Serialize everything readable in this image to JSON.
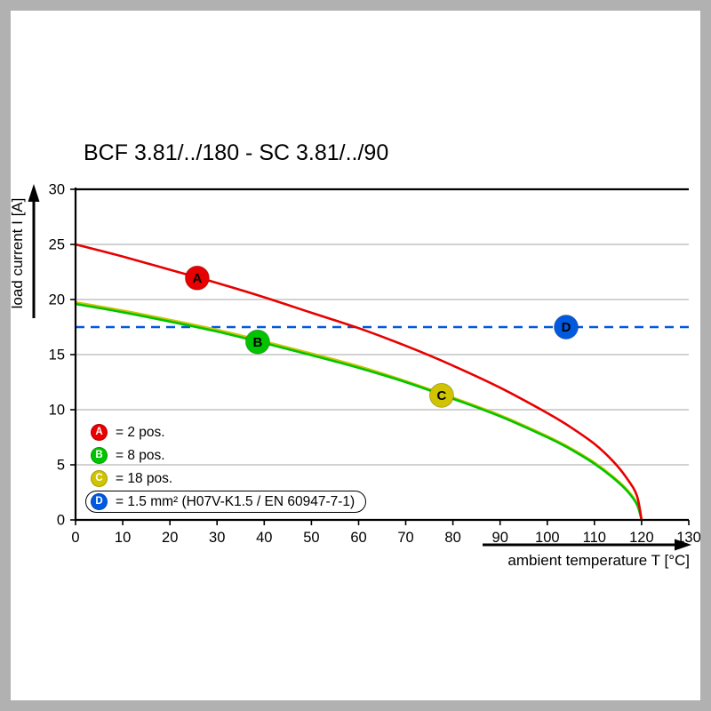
{
  "page": {
    "background": "#ffffff",
    "frame_color": "#b1b1b1"
  },
  "chart_data": {
    "type": "line",
    "title": "BCF 3.81/../180 - SC 3.81/../90",
    "xlabel": "ambient temperature T [°C]",
    "ylabel": "load current I [A]",
    "xlim": [
      0,
      130
    ],
    "ylim": [
      0,
      30
    ],
    "x_ticks": [
      0,
      10,
      20,
      30,
      40,
      50,
      60,
      70,
      80,
      90,
      100,
      110,
      120,
      130
    ],
    "y_ticks": [
      0,
      5,
      10,
      15,
      20,
      25,
      30
    ],
    "grid": "horizontal-only",
    "gridline_color": "#c4c4c4",
    "legend_position": "bottom-left-inside",
    "series": [
      {
        "id": "A",
        "name": "2 pos.",
        "color": "#e80000",
        "style": "solid",
        "marker": {
          "t": 25.8,
          "i": 21.95
        },
        "points": [
          [
            0,
            25
          ],
          [
            10,
            23.9
          ],
          [
            20,
            22.7
          ],
          [
            30,
            21.5
          ],
          [
            40,
            20.2
          ],
          [
            50,
            18.8
          ],
          [
            60,
            17.4
          ],
          [
            70,
            15.8
          ],
          [
            80,
            14
          ],
          [
            90,
            12
          ],
          [
            100,
            9.7
          ],
          [
            105,
            8.4
          ],
          [
            110,
            6.9
          ],
          [
            114,
            5.3
          ],
          [
            117,
            3.7
          ],
          [
            119,
            2.2
          ],
          [
            120,
            0
          ]
        ]
      },
      {
        "id": "B",
        "name": "8 pos.",
        "color": "#00c400",
        "style": "solid",
        "marker": {
          "t": 38.6,
          "i": 16.15
        },
        "points": [
          [
            0,
            19.6
          ],
          [
            10,
            18.85
          ],
          [
            20,
            18
          ],
          [
            30,
            17.1
          ],
          [
            40,
            16.05
          ],
          [
            50,
            14.95
          ],
          [
            60,
            13.8
          ],
          [
            70,
            12.5
          ],
          [
            80,
            11
          ],
          [
            90,
            9.4
          ],
          [
            100,
            7.5
          ],
          [
            105,
            6.4
          ],
          [
            110,
            5.1
          ],
          [
            114,
            3.8
          ],
          [
            117,
            2.6
          ],
          [
            119,
            1.4
          ],
          [
            120,
            0
          ]
        ]
      },
      {
        "id": "C",
        "name": "18 pos.",
        "color": "#d0c400",
        "style": "solid",
        "marker": {
          "t": 77.6,
          "i": 11.3
        },
        "points": [
          [
            0,
            19.75
          ],
          [
            10,
            19
          ],
          [
            20,
            18.15
          ],
          [
            30,
            17.25
          ],
          [
            40,
            16.2
          ],
          [
            50,
            15.1
          ],
          [
            60,
            13.95
          ],
          [
            70,
            12.6
          ],
          [
            80,
            11.1
          ],
          [
            90,
            9.5
          ],
          [
            100,
            7.6
          ],
          [
            105,
            6.5
          ],
          [
            110,
            5.2
          ],
          [
            114,
            3.9
          ],
          [
            117,
            2.7
          ],
          [
            119,
            1.5
          ],
          [
            120,
            0
          ]
        ]
      },
      {
        "id": "D",
        "name": "1.5 mm² (H07V-K1.5 / EN 60947-7-1)",
        "color": "#005ae0",
        "style": "dashed",
        "hline": true,
        "value": 17.5,
        "marker": {
          "t": 104,
          "i": 17.5
        }
      }
    ],
    "legend": [
      {
        "id": "A",
        "label": "= 2 pos.",
        "color": "#e80000",
        "boxed": false
      },
      {
        "id": "B",
        "label": "= 8 pos.",
        "color": "#00c400",
        "boxed": false
      },
      {
        "id": "C",
        "label": "= 18 pos.",
        "color": "#d0c400",
        "boxed": false
      },
      {
        "id": "D",
        "label": "= 1.5 mm² (H07V-K1.5 / EN 60947-7-1)",
        "color": "#005ae0",
        "boxed": true
      }
    ]
  }
}
